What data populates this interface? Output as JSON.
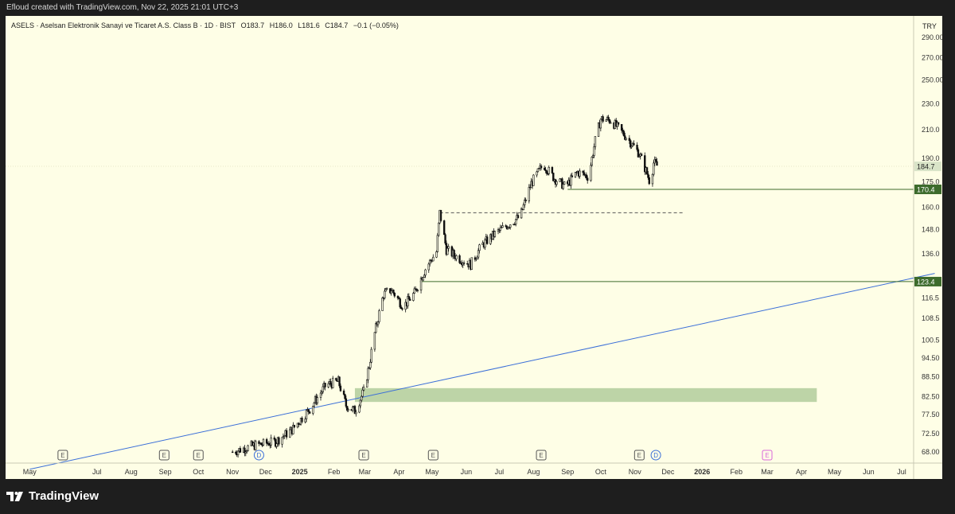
{
  "header": {
    "credit": "Efloud created with TradingView.com, Nov 22, 2025 21:01 UTC+3"
  },
  "legend": {
    "symbol": "ASELS · Aselsan Elektronik Sanayi ve Ticaret A.S. Class B · 1D · BIST",
    "open": "O183.7",
    "high": "H186.0",
    "low": "L181.6",
    "close": "C184.7",
    "change": "−0.1 (−0.05%)"
  },
  "currency": "TRY",
  "footer": {
    "logo_text": "TradingView"
  },
  "colors": {
    "background": "#fefee6",
    "support_line": "#3d6b2c",
    "trend_line": "#3b6fd8",
    "zone": "#b2cc9b",
    "marker_blue": "#3b6fd8",
    "marker_pink": "#d966d9"
  },
  "chart_data": {
    "type": "candlestick",
    "scale": "log",
    "y_ticks": [
      290.0,
      270.0,
      250.0,
      230.0,
      210.0,
      190.0,
      175.0,
      160.0,
      148.0,
      136.0,
      116.5,
      108.5,
      100.5,
      94.5,
      88.5,
      82.5,
      77.5,
      72.5,
      68.0
    ],
    "y_tick_labels": [
      "290.00",
      "270.00",
      "250.00",
      "230.0",
      "210.0",
      "190.0",
      "175.0",
      "160.0",
      "148.0",
      "136.0",
      "116.5",
      "108.5",
      "100.5",
      "94.50",
      "88.50",
      "82.50",
      "77.50",
      "72.50",
      "68.00"
    ],
    "x_ticks": [
      {
        "label": "May",
        "bold": false
      },
      {
        "label": "Jul",
        "bold": false
      },
      {
        "label": "Aug",
        "bold": false
      },
      {
        "label": "Sep",
        "bold": false
      },
      {
        "label": "Oct",
        "bold": false
      },
      {
        "label": "Nov",
        "bold": false
      },
      {
        "label": "Dec",
        "bold": false
      },
      {
        "label": "2025",
        "bold": true
      },
      {
        "label": "Feb",
        "bold": false
      },
      {
        "label": "Mar",
        "bold": false
      },
      {
        "label": "Apr",
        "bold": false
      },
      {
        "label": "May",
        "bold": false
      },
      {
        "label": "Jun",
        "bold": false
      },
      {
        "label": "Jul",
        "bold": false
      },
      {
        "label": "Aug",
        "bold": false
      },
      {
        "label": "Sep",
        "bold": false
      },
      {
        "label": "Oct",
        "bold": false
      },
      {
        "label": "Nov",
        "bold": false
      },
      {
        "label": "Dec",
        "bold": false
      },
      {
        "label": "2026",
        "bold": true
      },
      {
        "label": "Feb",
        "bold": false
      },
      {
        "label": "Mar",
        "bold": false
      },
      {
        "label": "Apr",
        "bold": false
      },
      {
        "label": "May",
        "bold": false
      },
      {
        "label": "Jun",
        "bold": false
      },
      {
        "label": "Jul",
        "bold": false
      }
    ],
    "price_path": [
      [
        "2024-11-01",
        68.0
      ],
      [
        "2024-11-20",
        69.5
      ],
      [
        "2024-12-10",
        70.5
      ],
      [
        "2024-12-25",
        73.5
      ],
      [
        "2025-01-10",
        79.0
      ],
      [
        "2025-01-25",
        86.0
      ],
      [
        "2025-02-05",
        87.0
      ],
      [
        "2025-02-12",
        80.0
      ],
      [
        "2025-02-20",
        78.5
      ],
      [
        "2025-02-28",
        84.0
      ],
      [
        "2025-03-05",
        92.0
      ],
      [
        "2025-03-10",
        103.0
      ],
      [
        "2025-03-18",
        118.0
      ],
      [
        "2025-03-25",
        120.0
      ],
      [
        "2025-04-05",
        113.0
      ],
      [
        "2025-04-15",
        118.5
      ],
      [
        "2025-04-25",
        129.0
      ],
      [
        "2025-05-05",
        137.0
      ],
      [
        "2025-05-08",
        157.0
      ],
      [
        "2025-05-14",
        138.0
      ],
      [
        "2025-05-25",
        134.0
      ],
      [
        "2025-06-05",
        131.0
      ],
      [
        "2025-06-15",
        140.0
      ],
      [
        "2025-06-25",
        145.0
      ],
      [
        "2025-07-05",
        149.0
      ],
      [
        "2025-07-20",
        155.0
      ],
      [
        "2025-07-30",
        174.0
      ],
      [
        "2025-08-10",
        186.0
      ],
      [
        "2025-08-20",
        177.0
      ],
      [
        "2025-08-30",
        172.0
      ],
      [
        "2025-09-10",
        181.0
      ],
      [
        "2025-09-20",
        178.0
      ],
      [
        "2025-09-26",
        202.0
      ],
      [
        "2025-10-01",
        218.0
      ],
      [
        "2025-10-10",
        217.0
      ],
      [
        "2025-10-18",
        210.0
      ],
      [
        "2025-10-25",
        204.0
      ],
      [
        "2025-11-05",
        193.0
      ],
      [
        "2025-11-12",
        180.0
      ],
      [
        "2025-11-15",
        174.0
      ],
      [
        "2025-11-18",
        187.0
      ],
      [
        "2025-11-22",
        184.7
      ]
    ],
    "horizontal_levels": [
      {
        "price": 170.4,
        "label": "170.4",
        "style": "solid"
      },
      {
        "price": 123.4,
        "label": "123.4",
        "style": "solid"
      },
      {
        "price": 157.0,
        "label": "",
        "style": "dashed"
      }
    ],
    "last_price": {
      "price": 184.7,
      "label": "184.7"
    },
    "zone": {
      "from": "2025-02-20",
      "to": "2026-04-15",
      "low": 81.0,
      "high": 85.0
    },
    "trend_line": {
      "start": [
        "2024-05-01",
        64.0
      ],
      "end": [
        "2026-07-31",
        127.0
      ]
    },
    "event_markers": [
      {
        "date": "2024-05-31",
        "text": "E",
        "kind": "earnings"
      },
      {
        "date": "2024-08-31",
        "text": "E",
        "kind": "earnings"
      },
      {
        "date": "2024-10-01",
        "text": "E",
        "kind": "earnings"
      },
      {
        "date": "2024-11-25",
        "text": "D",
        "kind": "dividend"
      },
      {
        "date": "2025-02-28",
        "text": "E",
        "kind": "earnings"
      },
      {
        "date": "2025-05-02",
        "text": "E",
        "kind": "earnings"
      },
      {
        "date": "2025-08-08",
        "text": "E",
        "kind": "earnings"
      },
      {
        "date": "2025-11-05",
        "text": "E",
        "kind": "earnings"
      },
      {
        "date": "2025-11-20",
        "text": "D",
        "kind": "dividend"
      },
      {
        "date": "2026-03-01",
        "text": "E",
        "kind": "earnings_future"
      }
    ]
  }
}
